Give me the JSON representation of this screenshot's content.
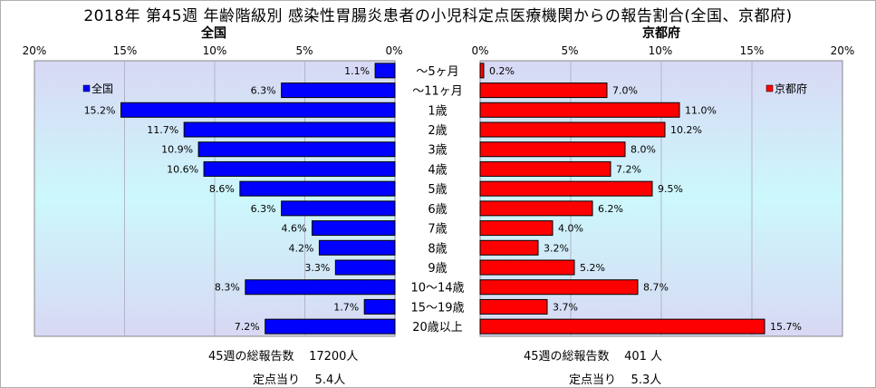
{
  "title": "2018年 第45週 年齢階級別 感染性胃腸炎患者の小児科定点医療機関からの報告割合(全国、京都府)",
  "colors": {
    "national": "#0000ff",
    "kyoto": "#ff0000",
    "plot_bg_top": "#d8d8f4",
    "plot_bg_mid": "#ccf8fc"
  },
  "chart_data": [
    {
      "type": "bar",
      "orientation": "horizontal",
      "direction": "right-to-left",
      "panel_title": "全国",
      "legend": "全国",
      "legend_position": "top-left",
      "xlim": [
        0,
        20
      ],
      "x_ticks": [
        "20%",
        "15%",
        "10%",
        "5%",
        "0%"
      ],
      "categories": [
        "～5ヶ月",
        "～11ヶ月",
        "1歳",
        "2歳",
        "3歳",
        "4歳",
        "5歳",
        "6歳",
        "7歳",
        "8歳",
        "9歳",
        "10～14歳",
        "15～19歳",
        "20歳以上"
      ],
      "series": [
        {
          "name": "全国",
          "values": [
            1.1,
            6.3,
            15.2,
            11.7,
            10.9,
            10.6,
            8.6,
            6.3,
            4.6,
            4.2,
            3.3,
            8.3,
            1.7,
            7.2
          ],
          "labels": [
            "1.1%",
            "6.3%",
            "15.2%",
            "11.7%",
            "10.9%",
            "10.6%",
            "8.6%",
            "6.3%",
            "4.6%",
            "4.2%",
            "3.3%",
            "8.3%",
            "1.7%",
            "7.2%"
          ]
        }
      ],
      "grid": true,
      "footer": {
        "total_label": "45週の総報告数",
        "total_value": "17200人",
        "per_site_label": "定点当り",
        "per_site_value": "5.4人"
      }
    },
    {
      "type": "bar",
      "orientation": "horizontal",
      "direction": "left-to-right",
      "panel_title": "京都府",
      "legend": "京都府",
      "legend_position": "top-right",
      "xlim": [
        0,
        20
      ],
      "x_ticks": [
        "0%",
        "5%",
        "10%",
        "15%",
        "20%"
      ],
      "categories": [
        "～5ヶ月",
        "～11ヶ月",
        "1歳",
        "2歳",
        "3歳",
        "4歳",
        "5歳",
        "6歳",
        "7歳",
        "8歳",
        "9歳",
        "10～14歳",
        "15～19歳",
        "20歳以上"
      ],
      "series": [
        {
          "name": "京都府",
          "values": [
            0.2,
            7.0,
            11.0,
            10.2,
            8.0,
            7.2,
            9.5,
            6.2,
            4.0,
            3.2,
            5.2,
            8.7,
            3.7,
            15.7
          ],
          "labels": [
            "0.2%",
            "7.0%",
            "11.0%",
            "10.2%",
            "8.0%",
            "7.2%",
            "9.5%",
            "6.2%",
            "4.0%",
            "3.2%",
            "5.2%",
            "8.7%",
            "3.7%",
            "15.7%"
          ]
        }
      ],
      "grid": true,
      "footer": {
        "total_label": "45週の総報告数",
        "total_value": "401 人",
        "per_site_label": "定点当り",
        "per_site_value": "5.3人"
      }
    }
  ]
}
